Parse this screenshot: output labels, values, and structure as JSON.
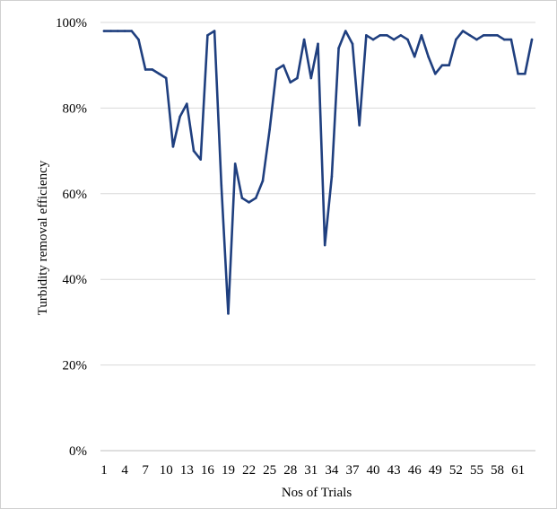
{
  "chart_data": {
    "type": "line",
    "xlabel": "Nos of Trials",
    "ylabel": "Turbidity removal efficiency",
    "ylim": [
      0,
      100
    ],
    "y_ticks": [
      "0%",
      "20%",
      "40%",
      "60%",
      "80%",
      "100%"
    ],
    "y_tick_values": [
      0,
      20,
      40,
      60,
      80,
      100
    ],
    "x_tick_labels": [
      "1",
      "4",
      "7",
      "10",
      "13",
      "16",
      "19",
      "22",
      "25",
      "28",
      "31",
      "34",
      "37",
      "40",
      "43",
      "46",
      "49",
      "52",
      "55",
      "58",
      "61"
    ],
    "grid": true,
    "legend": "none",
    "series": [
      {
        "color": "#1f3f7f",
        "x": [
          1,
          2,
          3,
          4,
          5,
          6,
          7,
          8,
          9,
          10,
          11,
          12,
          13,
          14,
          15,
          16,
          17,
          18,
          19,
          20,
          21,
          22,
          23,
          24,
          25,
          26,
          27,
          28,
          29,
          30,
          31,
          32,
          33,
          34,
          35,
          36,
          37,
          38,
          39,
          40,
          41,
          42,
          43,
          44,
          45,
          46,
          47,
          48,
          49,
          50,
          51,
          52,
          53,
          54,
          55,
          56,
          57,
          58,
          59,
          60,
          61,
          62,
          63
        ],
        "values": [
          98,
          98,
          98,
          98,
          98,
          96,
          89,
          89,
          88,
          87,
          71,
          78,
          81,
          70,
          68,
          97,
          98,
          62,
          32,
          67,
          59,
          58,
          59,
          63,
          75,
          89,
          90,
          86,
          87,
          96,
          87,
          95,
          48,
          64,
          94,
          98,
          95,
          76,
          97,
          96,
          97,
          97,
          96,
          97,
          96,
          92,
          97,
          92,
          88,
          90,
          90,
          96,
          98,
          97,
          96,
          97,
          97,
          97,
          96,
          96,
          88,
          88,
          96
        ]
      }
    ]
  }
}
